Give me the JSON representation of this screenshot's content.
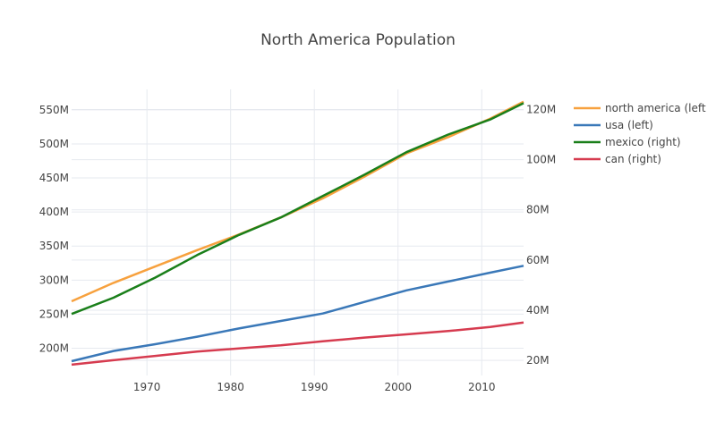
{
  "chart_data": {
    "type": "line",
    "title": "North America Population",
    "x": [
      1961,
      1966,
      1971,
      1976,
      1981,
      1986,
      1991,
      1996,
      2001,
      2006,
      2011,
      2015
    ],
    "xticks": [
      1970,
      1980,
      1990,
      2000,
      2010
    ],
    "xlim": [
      1961,
      2015
    ],
    "y_left": {
      "range": [
        160000000,
        580000000
      ],
      "ticks": [
        200000000,
        250000000,
        300000000,
        350000000,
        400000000,
        450000000,
        500000000,
        550000000
      ],
      "tick_labels": [
        "200M",
        "250M",
        "300M",
        "350M",
        "400M",
        "450M",
        "500M",
        "550M"
      ]
    },
    "y_right": {
      "range": [
        14000000,
        128000000
      ],
      "ticks": [
        20000000,
        40000000,
        60000000,
        80000000,
        100000000,
        120000000
      ],
      "tick_labels": [
        "20M",
        "40M",
        "60M",
        "80M",
        "100M",
        "120M"
      ]
    },
    "series": [
      {
        "name": "north america (left",
        "axis": "left",
        "color": "#f7a13e",
        "values": [
          269000000,
          296000000,
          320000000,
          344000000,
          367000000,
          392000000,
          420000000,
          452000000,
          486000000,
          510000000,
          537000000,
          562000000
        ]
      },
      {
        "name": "usa (left)",
        "axis": "left",
        "color": "#3a78b8",
        "values": [
          181000000,
          196000000,
          206000000,
          217000000,
          229000000,
          240000000,
          251000000,
          268000000,
          285000000,
          298000000,
          311000000,
          321000000
        ]
      },
      {
        "name": "mexico (right)",
        "axis": "right",
        "color": "#1a7f1a",
        "values": [
          38500000,
          45000000,
          53000000,
          62000000,
          70000000,
          77000000,
          85500000,
          94000000,
          103000000,
          110000000,
          116000000,
          122500000
        ]
      },
      {
        "name": "can (right)",
        "axis": "right",
        "color": "#d63b4f",
        "values": [
          18300000,
          20100000,
          21800000,
          23500000,
          24800000,
          26000000,
          27600000,
          29100000,
          30400000,
          31700000,
          33300000,
          35100000
        ]
      }
    ]
  }
}
